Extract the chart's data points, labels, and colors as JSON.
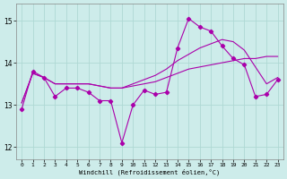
{
  "xlabel": "Windchill (Refroidissement éolien,°C)",
  "background_color": "#cdecea",
  "grid_color": "#afd8d4",
  "line_color": "#aa00aa",
  "xlim": [
    -0.5,
    23.5
  ],
  "ylim": [
    11.7,
    15.4
  ],
  "yticks": [
    12,
    13,
    14,
    15
  ],
  "xticks": [
    0,
    1,
    2,
    3,
    4,
    5,
    6,
    7,
    8,
    9,
    10,
    11,
    12,
    13,
    14,
    15,
    16,
    17,
    18,
    19,
    20,
    21,
    22,
    23
  ],
  "series1_x": [
    0,
    1,
    2,
    3,
    4,
    5,
    6,
    7,
    8,
    9,
    10,
    11,
    12,
    13,
    14,
    15,
    16,
    17,
    18,
    19,
    20,
    21,
    22,
    23
  ],
  "series1_y": [
    12.9,
    13.8,
    13.65,
    13.2,
    13.4,
    13.4,
    13.3,
    13.1,
    13.1,
    12.1,
    13.0,
    13.35,
    13.25,
    13.3,
    14.35,
    15.05,
    14.85,
    14.75,
    14.4,
    14.1,
    13.95,
    13.2,
    13.25,
    13.6
  ],
  "series2_x": [
    0,
    1,
    2,
    3,
    4,
    5,
    6,
    7,
    8,
    9,
    10,
    11,
    12,
    13,
    14,
    15,
    16,
    17,
    18,
    19,
    20,
    21,
    22,
    23
  ],
  "series2_y": [
    13.05,
    13.75,
    13.65,
    13.5,
    13.5,
    13.5,
    13.5,
    13.45,
    13.4,
    13.4,
    13.45,
    13.5,
    13.55,
    13.65,
    13.75,
    13.85,
    13.9,
    13.95,
    14.0,
    14.05,
    14.1,
    14.1,
    14.15,
    14.15
  ],
  "series3_x": [
    0,
    1,
    2,
    3,
    4,
    5,
    6,
    7,
    8,
    9,
    10,
    11,
    12,
    13,
    14,
    15,
    16,
    17,
    18,
    19,
    20,
    21,
    22,
    23
  ],
  "series3_y": [
    13.05,
    13.75,
    13.65,
    13.5,
    13.5,
    13.5,
    13.5,
    13.45,
    13.4,
    13.4,
    13.5,
    13.6,
    13.7,
    13.85,
    14.05,
    14.2,
    14.35,
    14.45,
    14.55,
    14.5,
    14.3,
    13.9,
    13.5,
    13.65
  ]
}
